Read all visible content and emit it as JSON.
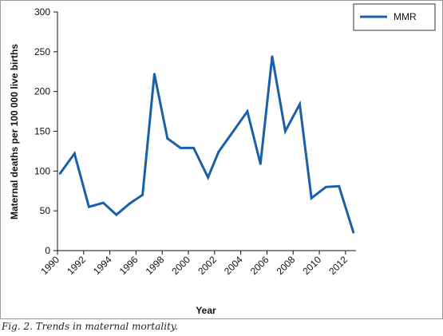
{
  "caption": "Fig. 2. Trends in maternal mortality.",
  "chart_data": {
    "type": "line",
    "xlabel": "Year",
    "ylabel": "Maternal deaths per 100 000 live births",
    "ylim": [
      0,
      300
    ],
    "xlim": [
      1990,
      2012.8
    ],
    "grid": false,
    "legend_placement": "top-right",
    "y_ticks": [
      0,
      50,
      100,
      150,
      200,
      250,
      300
    ],
    "x_ticks": [
      1990,
      1992,
      1994,
      1996,
      1998,
      2000,
      2002,
      2004,
      2006,
      2008,
      2010,
      2012
    ],
    "series": [
      {
        "name": "MMR",
        "color": "#1a5fa8",
        "x": [
          1990.2,
          1991.3,
          1992.4,
          1993.5,
          1994.5,
          1995.5,
          1996.5,
          1997.4,
          1998.4,
          1999.4,
          2000.4,
          2001.5,
          2002.3,
          2004.5,
          2005.5,
          2006.4,
          2007.4,
          2008.5,
          2009.4,
          2010.5,
          2011.5,
          2012.6
        ],
        "values": [
          97,
          122,
          55,
          60,
          45,
          59,
          70,
          222,
          141,
          129,
          129,
          92,
          124,
          175,
          109,
          244,
          150,
          184,
          66,
          80,
          81,
          23
        ]
      }
    ]
  }
}
